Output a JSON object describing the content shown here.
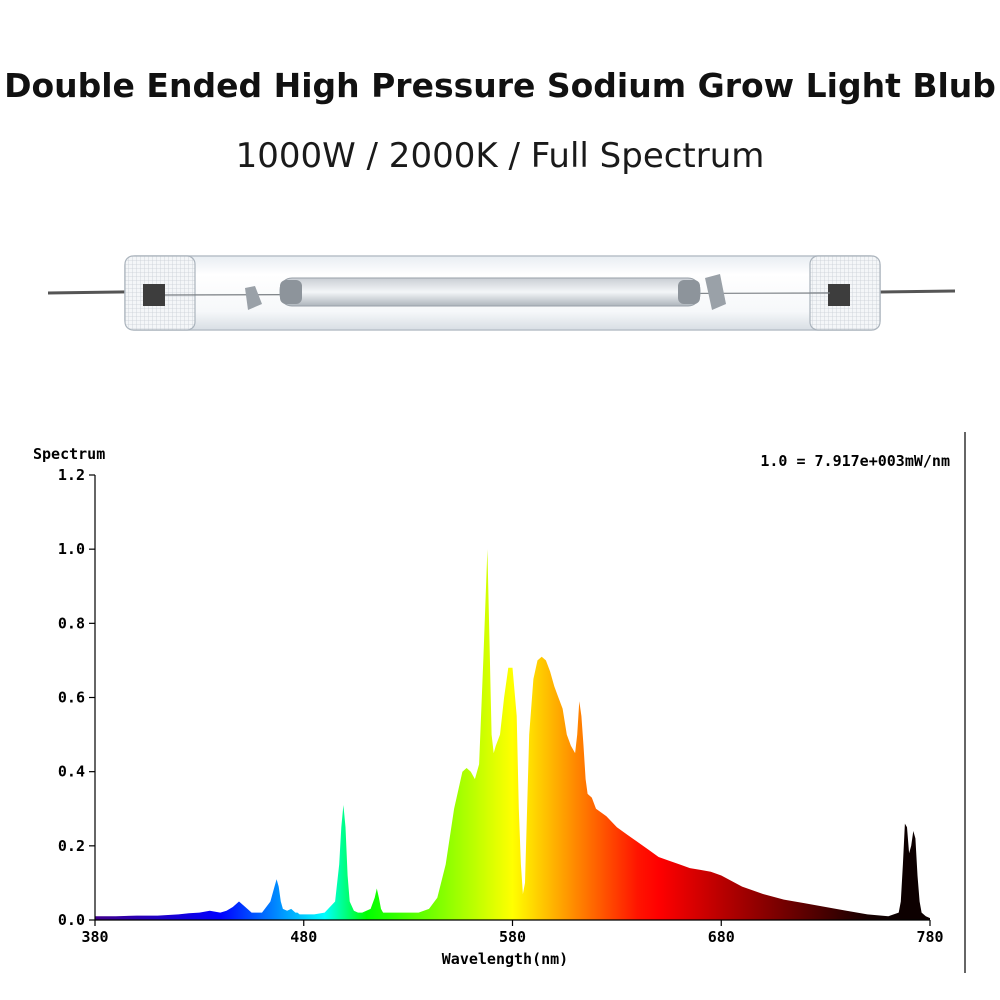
{
  "header": {
    "title": "Double Ended High Pressure Sodium Grow Light Blub",
    "subtitle": "1000W / 2000K / Full Spectrum"
  },
  "product_image": {
    "icon": "double-ended-hps-bulb-icon"
  },
  "chart_data": {
    "type": "area",
    "ylabel": "Spectrum",
    "xlabel": "Wavelength(nm)",
    "scale_note": "1.0 = 7.917e+003mW/nm",
    "xlim": [
      380,
      780
    ],
    "ylim": [
      0,
      1.2
    ],
    "xticks": [
      "380",
      "480",
      "580",
      "680",
      "780"
    ],
    "yticks": [
      "0.0",
      "0.2",
      "0.4",
      "0.6",
      "0.8",
      "1.0",
      "1.2"
    ],
    "series": [
      {
        "x": [
          380,
          390,
          400,
          410,
          420,
          425,
          430,
          435,
          440,
          443,
          446,
          449,
          452,
          455,
          460,
          464,
          466,
          467,
          468,
          469,
          470,
          472,
          474,
          476,
          477,
          478,
          480,
          485,
          490,
          495,
          497,
          498,
          499,
          500,
          501,
          502,
          504,
          506,
          508,
          510,
          512,
          514,
          515,
          516,
          517,
          518,
          520,
          525,
          530,
          535,
          540,
          544,
          548,
          552,
          556,
          558,
          560,
          562,
          564,
          566,
          568,
          569,
          570,
          571,
          572,
          574,
          576,
          578,
          580,
          582,
          583,
          584,
          585,
          586,
          587,
          588,
          590,
          592,
          594,
          596,
          598,
          600,
          602,
          604,
          606,
          608,
          610,
          611,
          612,
          613,
          614,
          615,
          616,
          618,
          620,
          625,
          630,
          635,
          640,
          645,
          650,
          655,
          660,
          665,
          670,
          675,
          680,
          690,
          700,
          710,
          720,
          730,
          740,
          750,
          760,
          765,
          766,
          767,
          768,
          769,
          770,
          771,
          772,
          773,
          774,
          775,
          776,
          778,
          780
        ],
        "y": [
          0.01,
          0.01,
          0.012,
          0.012,
          0.015,
          0.018,
          0.02,
          0.025,
          0.02,
          0.025,
          0.035,
          0.05,
          0.035,
          0.02,
          0.02,
          0.05,
          0.09,
          0.11,
          0.09,
          0.05,
          0.03,
          0.025,
          0.03,
          0.02,
          0.02,
          0.015,
          0.015,
          0.015,
          0.02,
          0.05,
          0.15,
          0.25,
          0.31,
          0.25,
          0.12,
          0.05,
          0.025,
          0.02,
          0.02,
          0.025,
          0.03,
          0.06,
          0.085,
          0.06,
          0.03,
          0.02,
          0.02,
          0.02,
          0.02,
          0.02,
          0.03,
          0.06,
          0.15,
          0.3,
          0.4,
          0.41,
          0.4,
          0.38,
          0.42,
          0.7,
          1.0,
          0.75,
          0.5,
          0.45,
          0.47,
          0.5,
          0.6,
          0.68,
          0.68,
          0.55,
          0.3,
          0.15,
          0.07,
          0.1,
          0.3,
          0.5,
          0.65,
          0.7,
          0.71,
          0.7,
          0.67,
          0.63,
          0.6,
          0.57,
          0.5,
          0.47,
          0.45,
          0.5,
          0.59,
          0.55,
          0.47,
          0.38,
          0.34,
          0.33,
          0.3,
          0.28,
          0.25,
          0.23,
          0.21,
          0.19,
          0.17,
          0.16,
          0.15,
          0.14,
          0.135,
          0.13,
          0.12,
          0.09,
          0.07,
          0.055,
          0.045,
          0.035,
          0.025,
          0.015,
          0.01,
          0.02,
          0.05,
          0.15,
          0.26,
          0.25,
          0.18,
          0.2,
          0.24,
          0.22,
          0.12,
          0.05,
          0.02,
          0.01,
          0.005
        ]
      }
    ]
  }
}
